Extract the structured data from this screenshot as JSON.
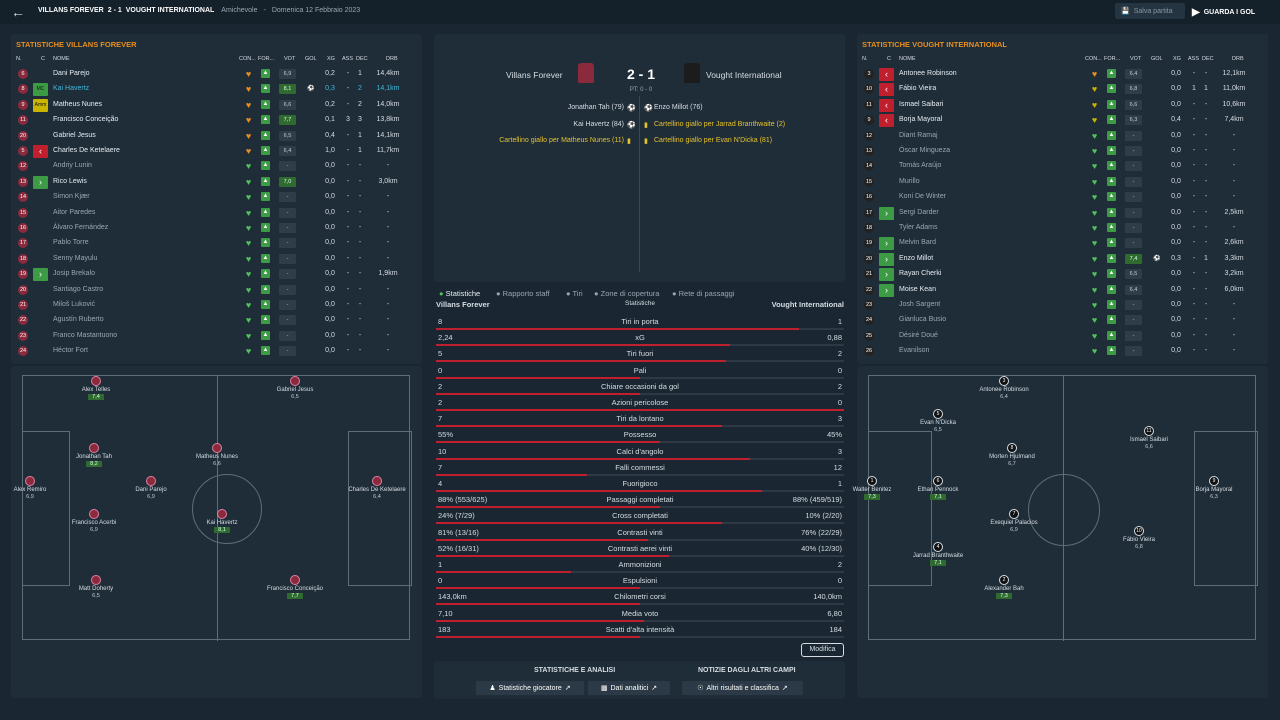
{
  "header": {
    "home": "VILLANS FOREVER",
    "score": "2 - 1",
    "away": "VOUGHT INTERNATIONAL",
    "competition": "Amichevole",
    "sep": "-",
    "date": "Domenica 12 Febbraio 2023",
    "save_label": "Salva partita",
    "goals_label": "GUARDA I GOL"
  },
  "left_panel": {
    "title": "STATISTICHE VILLANS FOREVER",
    "cols": [
      "N.",
      "C",
      "NOME",
      "CON...",
      "FOR...",
      "VOT",
      "GOL",
      "XG",
      "ASS",
      "DEC",
      "DRB"
    ],
    "players": [
      {
        "num": "6",
        "name": "Dani Parejo",
        "vote": "6,9",
        "xg": "0,2",
        "ass": "-",
        "dec": "1",
        "drb": "14,4km",
        "con": "orange",
        "sub": ""
      },
      {
        "num": "8",
        "name": "Kai Havertz",
        "role": "MC",
        "vote": "8,1",
        "goal": true,
        "xg": "0,3",
        "ass": "-",
        "dec": "2",
        "drb": "14,1km",
        "con": "orange",
        "hl": true,
        "sub": ""
      },
      {
        "num": "9",
        "name": "Matheus Nunes",
        "role": "Amm",
        "vote": "6,6",
        "xg": "0,2",
        "ass": "-",
        "dec": "2",
        "drb": "14,0km",
        "con": "orange",
        "sub": ""
      },
      {
        "num": "11",
        "name": "Francisco Conceição",
        "vote": "7,7",
        "xg": "0,1",
        "ass": "3",
        "dec": "3",
        "drb": "13,8km",
        "con": "orange",
        "sub": ""
      },
      {
        "num": "20",
        "name": "Gabriel Jesus",
        "vote": "6,5",
        "xg": "0,4",
        "ass": "-",
        "dec": "1",
        "drb": "14,1km",
        "con": "orange",
        "sub": ""
      },
      {
        "num": "5",
        "name": "Charles De Ketelaere",
        "vote": "6,4",
        "xg": "1,0",
        "ass": "-",
        "dec": "1",
        "drb": "11,7km",
        "con": "orange",
        "sub": "out"
      },
      {
        "num": "12",
        "name": "Andriy Lunin",
        "vote": "-",
        "xg": "0,0",
        "ass": "-",
        "dec": "-",
        "drb": "-",
        "con": "green",
        "sub": ""
      },
      {
        "num": "13",
        "name": "Rico Lewis",
        "vote": "7,0",
        "xg": "0,0",
        "ass": "-",
        "dec": "-",
        "drb": "3,0km",
        "con": "green",
        "sub": "in"
      },
      {
        "num": "14",
        "name": "Simon Kjær",
        "vote": "-",
        "xg": "0,0",
        "ass": "-",
        "dec": "-",
        "drb": "-",
        "con": "green",
        "sub": ""
      },
      {
        "num": "15",
        "name": "Aitor Paredes",
        "vote": "-",
        "xg": "0,0",
        "ass": "-",
        "dec": "-",
        "drb": "-",
        "con": "green",
        "sub": ""
      },
      {
        "num": "16",
        "name": "Álvaro Fernández",
        "vote": "-",
        "xg": "0,0",
        "ass": "-",
        "dec": "-",
        "drb": "-",
        "con": "green",
        "sub": ""
      },
      {
        "num": "17",
        "name": "Pablo Torre",
        "vote": "-",
        "xg": "0,0",
        "ass": "-",
        "dec": "-",
        "drb": "-",
        "con": "green",
        "sub": ""
      },
      {
        "num": "18",
        "name": "Senny Mayulu",
        "vote": "-",
        "xg": "0,0",
        "ass": "-",
        "dec": "-",
        "drb": "-",
        "con": "green",
        "sub": ""
      },
      {
        "num": "19",
        "name": "Josip Brekalo",
        "vote": "-",
        "xg": "0,0",
        "ass": "-",
        "dec": "-",
        "drb": "1,9km",
        "con": "green",
        "sub": "in"
      },
      {
        "num": "20",
        "name": "Santiago Castro",
        "vote": "-",
        "xg": "0,0",
        "ass": "-",
        "dec": "-",
        "drb": "-",
        "con": "green",
        "sub": ""
      },
      {
        "num": "21",
        "name": "Miloš Luković",
        "vote": "-",
        "xg": "0,0",
        "ass": "-",
        "dec": "-",
        "drb": "-",
        "con": "green",
        "sub": ""
      },
      {
        "num": "22",
        "name": "Agustín Ruberto",
        "vote": "-",
        "xg": "0,0",
        "ass": "-",
        "dec": "-",
        "drb": "-",
        "con": "green",
        "sub": ""
      },
      {
        "num": "23",
        "name": "Franco Mastantuono",
        "vote": "-",
        "xg": "0,0",
        "ass": "-",
        "dec": "-",
        "drb": "-",
        "con": "green",
        "sub": ""
      },
      {
        "num": "24",
        "name": "Héctor Fort",
        "vote": "-",
        "xg": "0,0",
        "ass": "-",
        "dec": "-",
        "drb": "-",
        "con": "green",
        "sub": ""
      }
    ]
  },
  "right_panel": {
    "title": "STATISTICHE VOUGHT INTERNATIONAL",
    "cols": [
      "N.",
      "C",
      "NOME",
      "CON...",
      "FOR...",
      "VOT",
      "GOL",
      "XG",
      "ASS",
      "DEC",
      "DRB"
    ],
    "players": [
      {
        "num": "3",
        "name": "Antonee Robinson",
        "vote": "6,4",
        "xg": "0,0",
        "ass": "-",
        "dec": "-",
        "drb": "12,1km",
        "con": "orange",
        "sub": "out"
      },
      {
        "num": "10",
        "name": "Fábio Vieira",
        "vote": "6,8",
        "xg": "0,0",
        "ass": "1",
        "dec": "1",
        "drb": "11,0km",
        "con": "yellow",
        "sub": "out"
      },
      {
        "num": "11",
        "name": "Ismael Saibari",
        "vote": "6,6",
        "xg": "0,0",
        "ass": "-",
        "dec": "-",
        "drb": "10,6km",
        "con": "yellow",
        "sub": "out"
      },
      {
        "num": "9",
        "name": "Borja Mayoral",
        "vote": "6,3",
        "xg": "0,4",
        "ass": "-",
        "dec": "-",
        "drb": "7,4km",
        "con": "yellow",
        "sub": "out"
      },
      {
        "num": "12",
        "name": "Diant Ramaj",
        "vote": "-",
        "xg": "0,0",
        "ass": "-",
        "dec": "-",
        "drb": "-",
        "con": "green",
        "sub": ""
      },
      {
        "num": "13",
        "name": "Óscar Mingueza",
        "vote": "-",
        "xg": "0,0",
        "ass": "-",
        "dec": "-",
        "drb": "-",
        "con": "green",
        "sub": ""
      },
      {
        "num": "14",
        "name": "Tomás Araújo",
        "vote": "-",
        "xg": "0,0",
        "ass": "-",
        "dec": "-",
        "drb": "-",
        "con": "green",
        "sub": ""
      },
      {
        "num": "15",
        "name": "Murillo",
        "vote": "-",
        "xg": "0,0",
        "ass": "-",
        "dec": "-",
        "drb": "-",
        "con": "green",
        "sub": ""
      },
      {
        "num": "16",
        "name": "Koni De Winter",
        "vote": "-",
        "xg": "0,0",
        "ass": "-",
        "dec": "-",
        "drb": "-",
        "con": "green",
        "sub": ""
      },
      {
        "num": "17",
        "name": "Sergi Darder",
        "vote": "-",
        "xg": "0,0",
        "ass": "-",
        "dec": "-",
        "drb": "2,5km",
        "con": "green",
        "sub": "in"
      },
      {
        "num": "18",
        "name": "Tyler Adams",
        "vote": "-",
        "xg": "0,0",
        "ass": "-",
        "dec": "-",
        "drb": "-",
        "con": "green",
        "sub": ""
      },
      {
        "num": "19",
        "name": "Melvin Bard",
        "vote": "-",
        "xg": "0,0",
        "ass": "-",
        "dec": "-",
        "drb": "2,6km",
        "con": "green",
        "sub": "in"
      },
      {
        "num": "20",
        "name": "Enzo Millot",
        "vote": "7,4",
        "goal": true,
        "xg": "0,3",
        "ass": "-",
        "dec": "1",
        "drb": "3,3km",
        "con": "green",
        "sub": "in"
      },
      {
        "num": "21",
        "name": "Rayan Cherki",
        "vote": "6,5",
        "xg": "0,0",
        "ass": "-",
        "dec": "-",
        "drb": "3,2km",
        "con": "green",
        "sub": "in"
      },
      {
        "num": "22",
        "name": "Moise Kean",
        "vote": "6,4",
        "xg": "0,0",
        "ass": "-",
        "dec": "-",
        "drb": "6,0km",
        "con": "green",
        "sub": "in"
      },
      {
        "num": "23",
        "name": "Josh Sargent",
        "vote": "-",
        "xg": "0,0",
        "ass": "-",
        "dec": "-",
        "drb": "-",
        "con": "green",
        "sub": ""
      },
      {
        "num": "24",
        "name": "Gianluca Busio",
        "vote": "-",
        "xg": "0,0",
        "ass": "-",
        "dec": "-",
        "drb": "-",
        "con": "green",
        "sub": ""
      },
      {
        "num": "25",
        "name": "Désiré Doué",
        "vote": "-",
        "xg": "0,0",
        "ass": "-",
        "dec": "-",
        "drb": "-",
        "con": "green",
        "sub": ""
      },
      {
        "num": "26",
        "name": "Evanilson",
        "vote": "-",
        "xg": "0,0",
        "ass": "-",
        "dec": "-",
        "drb": "-",
        "con": "green",
        "sub": ""
      }
    ]
  },
  "match": {
    "home_team": "Villans Forever",
    "away_team": "Vought International",
    "score": "2 - 1",
    "halftime": "PT: 0 - 0",
    "home_events": [
      "Jonathan Tah (79)",
      "Kai Havertz (84)",
      "Cartellino giallo per Matheus Nunes (11)"
    ],
    "away_events": [
      "Enzo Millot (76)",
      "Cartellino giallo per Jarrad Branthwaite (2)",
      "Cartellino giallo per Evan N'Dicka (81)"
    ]
  },
  "tabs": [
    "Statistiche",
    "Rapporto staff",
    "Tiri",
    "Zone di copertura",
    "Rete di passaggi"
  ],
  "stats_header": {
    "home": "Villans Forever",
    "mid": "Statistiche",
    "away": "Vought International"
  },
  "stats": [
    {
      "l": "8",
      "c": "Tiri in porta",
      "r": "1",
      "w": 0.89
    },
    {
      "l": "2,24",
      "c": "xG",
      "r": "0,88",
      "w": 0.72
    },
    {
      "l": "5",
      "c": "Tiri fuori",
      "r": "2",
      "w": 0.71
    },
    {
      "l": "0",
      "c": "Pali",
      "r": "0",
      "w": 0.5
    },
    {
      "l": "2",
      "c": "Chiare occasioni da gol",
      "r": "2",
      "w": 0.5
    },
    {
      "l": "2",
      "c": "Azioni pericolose",
      "r": "0",
      "w": 1.0
    },
    {
      "l": "7",
      "c": "Tiri da lontano",
      "r": "3",
      "w": 0.7
    },
    {
      "l": "55%",
      "c": "Possesso",
      "r": "45%",
      "w": 0.55
    },
    {
      "l": "10",
      "c": "Calci d'angolo",
      "r": "3",
      "w": 0.77
    },
    {
      "l": "7",
      "c": "Falli commessi",
      "r": "12",
      "w": 0.37
    },
    {
      "l": "4",
      "c": "Fuorigioco",
      "r": "1",
      "w": 0.8
    },
    {
      "l": "88% (553/625)",
      "c": "Passaggi completati",
      "r": "88% (459/519)",
      "w": 0.55
    },
    {
      "l": "24% (7/29)",
      "c": "Cross completati",
      "r": "10% (2/20)",
      "w": 0.7
    },
    {
      "l": "81% (13/16)",
      "c": "Contrasti vinti",
      "r": "76% (22/29)",
      "w": 0.52
    },
    {
      "l": "52% (16/31)",
      "c": "Contrasti aerei vinti",
      "r": "40% (12/30)",
      "w": 0.57
    },
    {
      "l": "1",
      "c": "Ammonizioni",
      "r": "2",
      "w": 0.33
    },
    {
      "l": "0",
      "c": "Espulsioni",
      "r": "0",
      "w": 0.5
    },
    {
      "l": "143,0km",
      "c": "Chilometri corsi",
      "r": "140,0km",
      "w": 0.5
    },
    {
      "l": "7,10",
      "c": "Media voto",
      "r": "6,80",
      "w": 0.51
    },
    {
      "l": "183",
      "c": "Scatti d'alta intensità",
      "r": "184",
      "w": 0.5
    }
  ],
  "modify_label": "Modifica",
  "bottom": {
    "left_title": "STATISTICHE E ANALISI",
    "right_title": "NOTIZIE DAGLI ALTRI CAMPI",
    "btn1": "Statistiche giocatore",
    "btn2": "Dati analitici",
    "btn3": "Altri risultati e classifica"
  },
  "home_pitch": [
    {
      "name": "Alex Telles",
      "rating": "7,4",
      "good": true
    },
    {
      "name": "Gabriel Jesus",
      "rating": "6,5"
    },
    {
      "name": "Jonathan Tah",
      "rating": "8,2",
      "good": true
    },
    {
      "name": "Matheus Nunes",
      "rating": "6,6"
    },
    {
      "name": "Alex Remiro",
      "rating": "6,9"
    },
    {
      "name": "Dani Parejo",
      "rating": "6,9"
    },
    {
      "name": "Charles De Ketelaere",
      "rating": "6,4"
    },
    {
      "name": "Francisco Acerbi",
      "rating": "6,9"
    },
    {
      "name": "Kai Havertz",
      "rating": "8,1",
      "good": true
    },
    {
      "name": "Matt Doherty",
      "rating": "6,5"
    },
    {
      "name": "Francisco Conceição",
      "rating": "7,7",
      "good": true
    }
  ],
  "away_pitch": [
    {
      "num": "3",
      "name": "Antonee Robinson",
      "rating": "6,4"
    },
    {
      "num": "5",
      "name": "Evan N'Dicka",
      "rating": "6,5"
    },
    {
      "num": "11",
      "name": "Ismael Saibari",
      "rating": "6,6"
    },
    {
      "num": "8",
      "name": "Morten Hjulmand",
      "rating": "6,7"
    },
    {
      "num": "1",
      "name": "Walter Benitez",
      "rating": "7,3",
      "good": true
    },
    {
      "num": "6",
      "name": "Ethan Pennock",
      "rating": "7,1",
      "good": true
    },
    {
      "num": "9",
      "name": "Borja Mayoral",
      "rating": "6,3"
    },
    {
      "num": "7",
      "name": "Exequiel Palacios",
      "rating": "6,9"
    },
    {
      "num": "10",
      "name": "Fábio Vieira",
      "rating": "6,8"
    },
    {
      "num": "4",
      "name": "Jarrad Branthwaite",
      "rating": "7,1",
      "good": true
    },
    {
      "num": "2",
      "name": "Alexander Bah",
      "rating": "7,3",
      "good": true
    }
  ]
}
